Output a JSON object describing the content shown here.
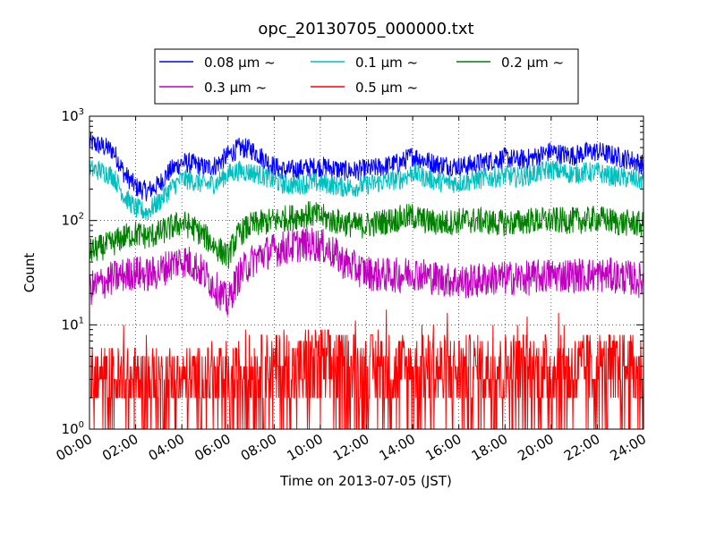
{
  "chart_data": {
    "type": "line",
    "title": "opc_20130705_000000.txt",
    "xlabel": "Time on 2013-07-05 (JST)",
    "ylabel": "Count",
    "yscale": "log",
    "ylim": [
      1,
      1000
    ],
    "xlim": [
      "00:00",
      "24:00"
    ],
    "grid": true,
    "legend_position": "top",
    "x_ticks": [
      "00:00",
      "02:00",
      "04:00",
      "06:00",
      "08:00",
      "10:00",
      "12:00",
      "14:00",
      "16:00",
      "18:00",
      "20:00",
      "22:00",
      "24:00"
    ],
    "y_ticks": [
      {
        "base": "10",
        "exp": "0"
      },
      {
        "base": "10",
        "exp": "1"
      },
      {
        "base": "10",
        "exp": "2"
      },
      {
        "base": "10",
        "exp": "3"
      }
    ],
    "x": [
      "00:00",
      "00:30",
      "01:00",
      "01:30",
      "02:00",
      "02:30",
      "03:00",
      "03:30",
      "04:00",
      "04:30",
      "05:00",
      "05:30",
      "06:00",
      "06:30",
      "07:00",
      "07:30",
      "08:00",
      "08:30",
      "09:00",
      "09:30",
      "10:00",
      "10:30",
      "11:00",
      "11:30",
      "12:00",
      "12:30",
      "13:00",
      "13:30",
      "14:00",
      "14:30",
      "15:00",
      "15:30",
      "16:00",
      "16:30",
      "17:00",
      "17:30",
      "18:00",
      "18:30",
      "19:00",
      "19:30",
      "20:00",
      "20:30",
      "21:00",
      "21:30",
      "22:00",
      "22:30",
      "23:00",
      "23:30",
      "24:00"
    ],
    "series": [
      {
        "name": "0.08 μm ~",
        "color": "#0000ff",
        "values": [
          560,
          520,
          470,
          280,
          210,
          190,
          220,
          300,
          360,
          350,
          320,
          340,
          420,
          500,
          480,
          400,
          330,
          300,
          310,
          320,
          330,
          320,
          300,
          300,
          310,
          320,
          340,
          360,
          420,
          380,
          350,
          340,
          330,
          340,
          360,
          380,
          400,
          380,
          390,
          420,
          460,
          430,
          420,
          450,
          460,
          430,
          400,
          380,
          340
        ]
      },
      {
        "name": "0.1 μm ~",
        "color": "#00bfbf",
        "values": [
          310,
          300,
          270,
          170,
          130,
          120,
          150,
          200,
          250,
          240,
          220,
          230,
          280,
          300,
          290,
          270,
          240,
          220,
          220,
          230,
          230,
          220,
          210,
          210,
          220,
          230,
          240,
          250,
          290,
          260,
          240,
          230,
          230,
          240,
          250,
          260,
          270,
          260,
          270,
          290,
          310,
          290,
          280,
          290,
          290,
          270,
          260,
          250,
          240
        ]
      },
      {
        "name": "0.2 μm ~",
        "color": "#008000",
        "values": [
          50,
          55,
          60,
          70,
          75,
          70,
          75,
          85,
          95,
          85,
          70,
          55,
          45,
          75,
          90,
          95,
          100,
          105,
          110,
          115,
          110,
          100,
          95,
          90,
          90,
          95,
          100,
          105,
          110,
          100,
          95,
          95,
          100,
          100,
          100,
          95,
          95,
          95,
          100,
          100,
          100,
          100,
          100,
          100,
          105,
          100,
          95,
          95,
          90
        ]
      },
      {
        "name": "0.3 μm ~",
        "color": "#bf00bf",
        "values": [
          22,
          25,
          28,
          30,
          32,
          30,
          32,
          38,
          42,
          38,
          30,
          22,
          16,
          30,
          40,
          48,
          52,
          55,
          58,
          60,
          58,
          50,
          40,
          35,
          32,
          30,
          30,
          30,
          32,
          30,
          28,
          27,
          26,
          26,
          27,
          28,
          28,
          28,
          28,
          29,
          30,
          30,
          30,
          30,
          30,
          30,
          29,
          28,
          26
        ]
      },
      {
        "name": "0.5 μm ~",
        "color": "#ff0000",
        "values": [
          3,
          3,
          3,
          3,
          3,
          3,
          3,
          3,
          3,
          3,
          3,
          3,
          2.5,
          3.5,
          4,
          4,
          4,
          4,
          4,
          4.5,
          4.5,
          4.5,
          4,
          4,
          4,
          4,
          4,
          4,
          4,
          4,
          4,
          4,
          4,
          4,
          4,
          4,
          4,
          4,
          4,
          4,
          4,
          4,
          4,
          4,
          4,
          4,
          4,
          4,
          4
        ]
      }
    ]
  }
}
